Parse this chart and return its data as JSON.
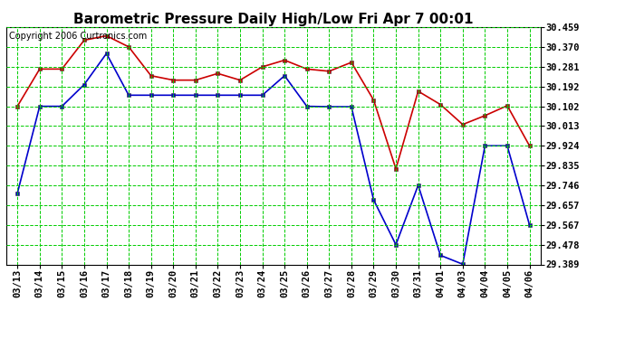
{
  "title": "Barometric Pressure Daily High/Low Fri Apr 7 00:01",
  "copyright": "Copyright 2006 Curtronics.com",
  "x_labels": [
    "03/13",
    "03/14",
    "03/15",
    "03/16",
    "03/17",
    "03/18",
    "03/19",
    "03/20",
    "03/21",
    "03/22",
    "03/23",
    "03/24",
    "03/25",
    "03/26",
    "03/27",
    "03/28",
    "03/29",
    "03/30",
    "03/31",
    "04/01",
    "04/03",
    "04/04",
    "04/05",
    "04/06"
  ],
  "high_values": [
    30.102,
    30.27,
    30.27,
    30.4,
    30.42,
    30.37,
    30.24,
    30.22,
    30.22,
    30.25,
    30.22,
    30.28,
    30.31,
    30.27,
    30.26,
    30.3,
    30.13,
    29.82,
    30.17,
    30.11,
    30.02,
    30.06,
    30.105,
    29.924
  ],
  "low_values": [
    29.71,
    30.102,
    30.102,
    30.2,
    30.34,
    30.152,
    30.152,
    30.152,
    30.152,
    30.152,
    30.152,
    30.152,
    30.24,
    30.102,
    30.1,
    30.1,
    29.68,
    29.478,
    29.746,
    29.43,
    29.39,
    29.924,
    29.924,
    29.567
  ],
  "high_color": "#cc0000",
  "low_color": "#0000cc",
  "bg_color": "#ffffff",
  "grid_color": "#00cc00",
  "y_ticks": [
    29.389,
    29.478,
    29.567,
    29.657,
    29.746,
    29.835,
    29.924,
    30.013,
    30.102,
    30.192,
    30.281,
    30.37,
    30.459
  ],
  "ylim_min": 29.389,
  "ylim_max": 30.459,
  "title_fontsize": 11,
  "tick_fontsize": 7.5,
  "copyright_fontsize": 7
}
